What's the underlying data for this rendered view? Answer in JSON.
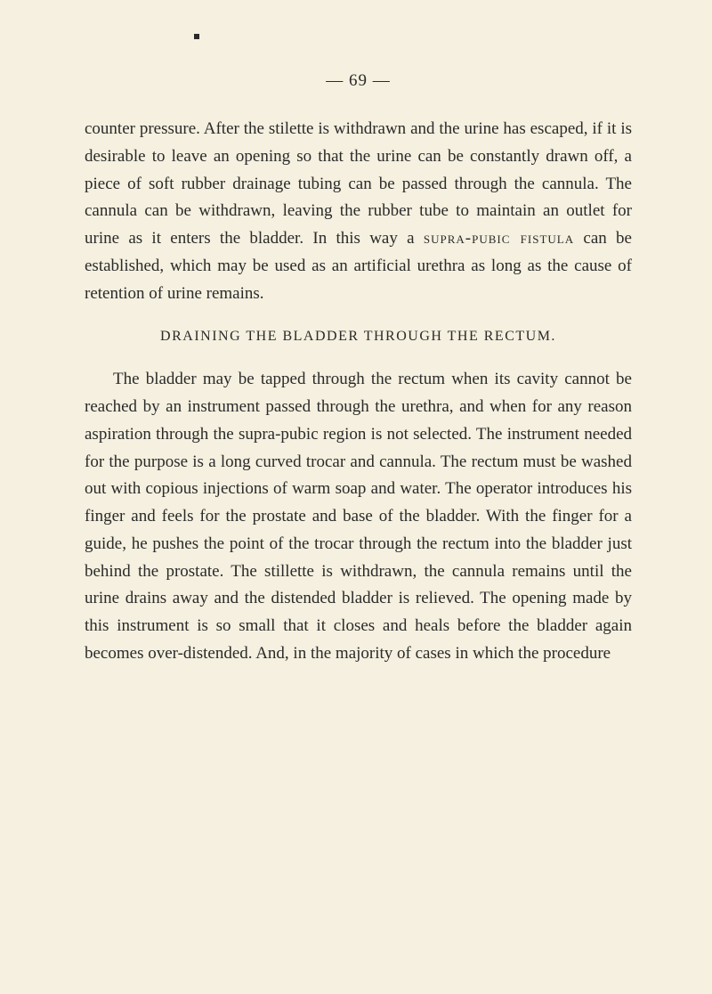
{
  "page": {
    "number": "— 69 —",
    "background_color": "#f5f0df",
    "text_color": "#2a2a2a",
    "body_fontsize": 19,
    "heading_fontsize": 16,
    "line_height": 1.62
  },
  "paragraphs": {
    "p1": "counter pressure. After the stilette is withdrawn and the urine has escaped, if it is desirable to leave an opening so that the urine can be constantly drawn off, a piece of soft rubber drainage tubing can be passed through the cannula. The cannula can be withdrawn, leaving the rubber tube to maintain an outlet for urine as it enters the bladder. In this way a ",
    "p1_smallcaps": "supra-pubic fistula",
    "p1_end": " can be established, which may be used as an artificial urethra as long as the cause of retention of urine remains.",
    "heading": "DRAINING THE BLADDER THROUGH THE RECTUM.",
    "p2": "The bladder may be tapped through the rectum when its cavity cannot be reached by an instrument passed through the urethra, and when for any reason aspiration through the supra-pubic region is not selected. The instrument needed for the purpose is a long curved trocar and cannula. The rectum must be washed out with copious injections of warm soap and water. The operator introduces his finger and feels for the prostate and base of the bladder. With the finger for a guide, he pushes the point of the trocar through the rectum into the bladder just behind the prostate. The stillette is withdrawn, the cannula remains until the urine drains away and the distended bladder is relieved. The opening made by this instrument is so small that it closes and heals before the bladder again becomes over-distended. And, in the majority of cases in which the procedure"
  }
}
